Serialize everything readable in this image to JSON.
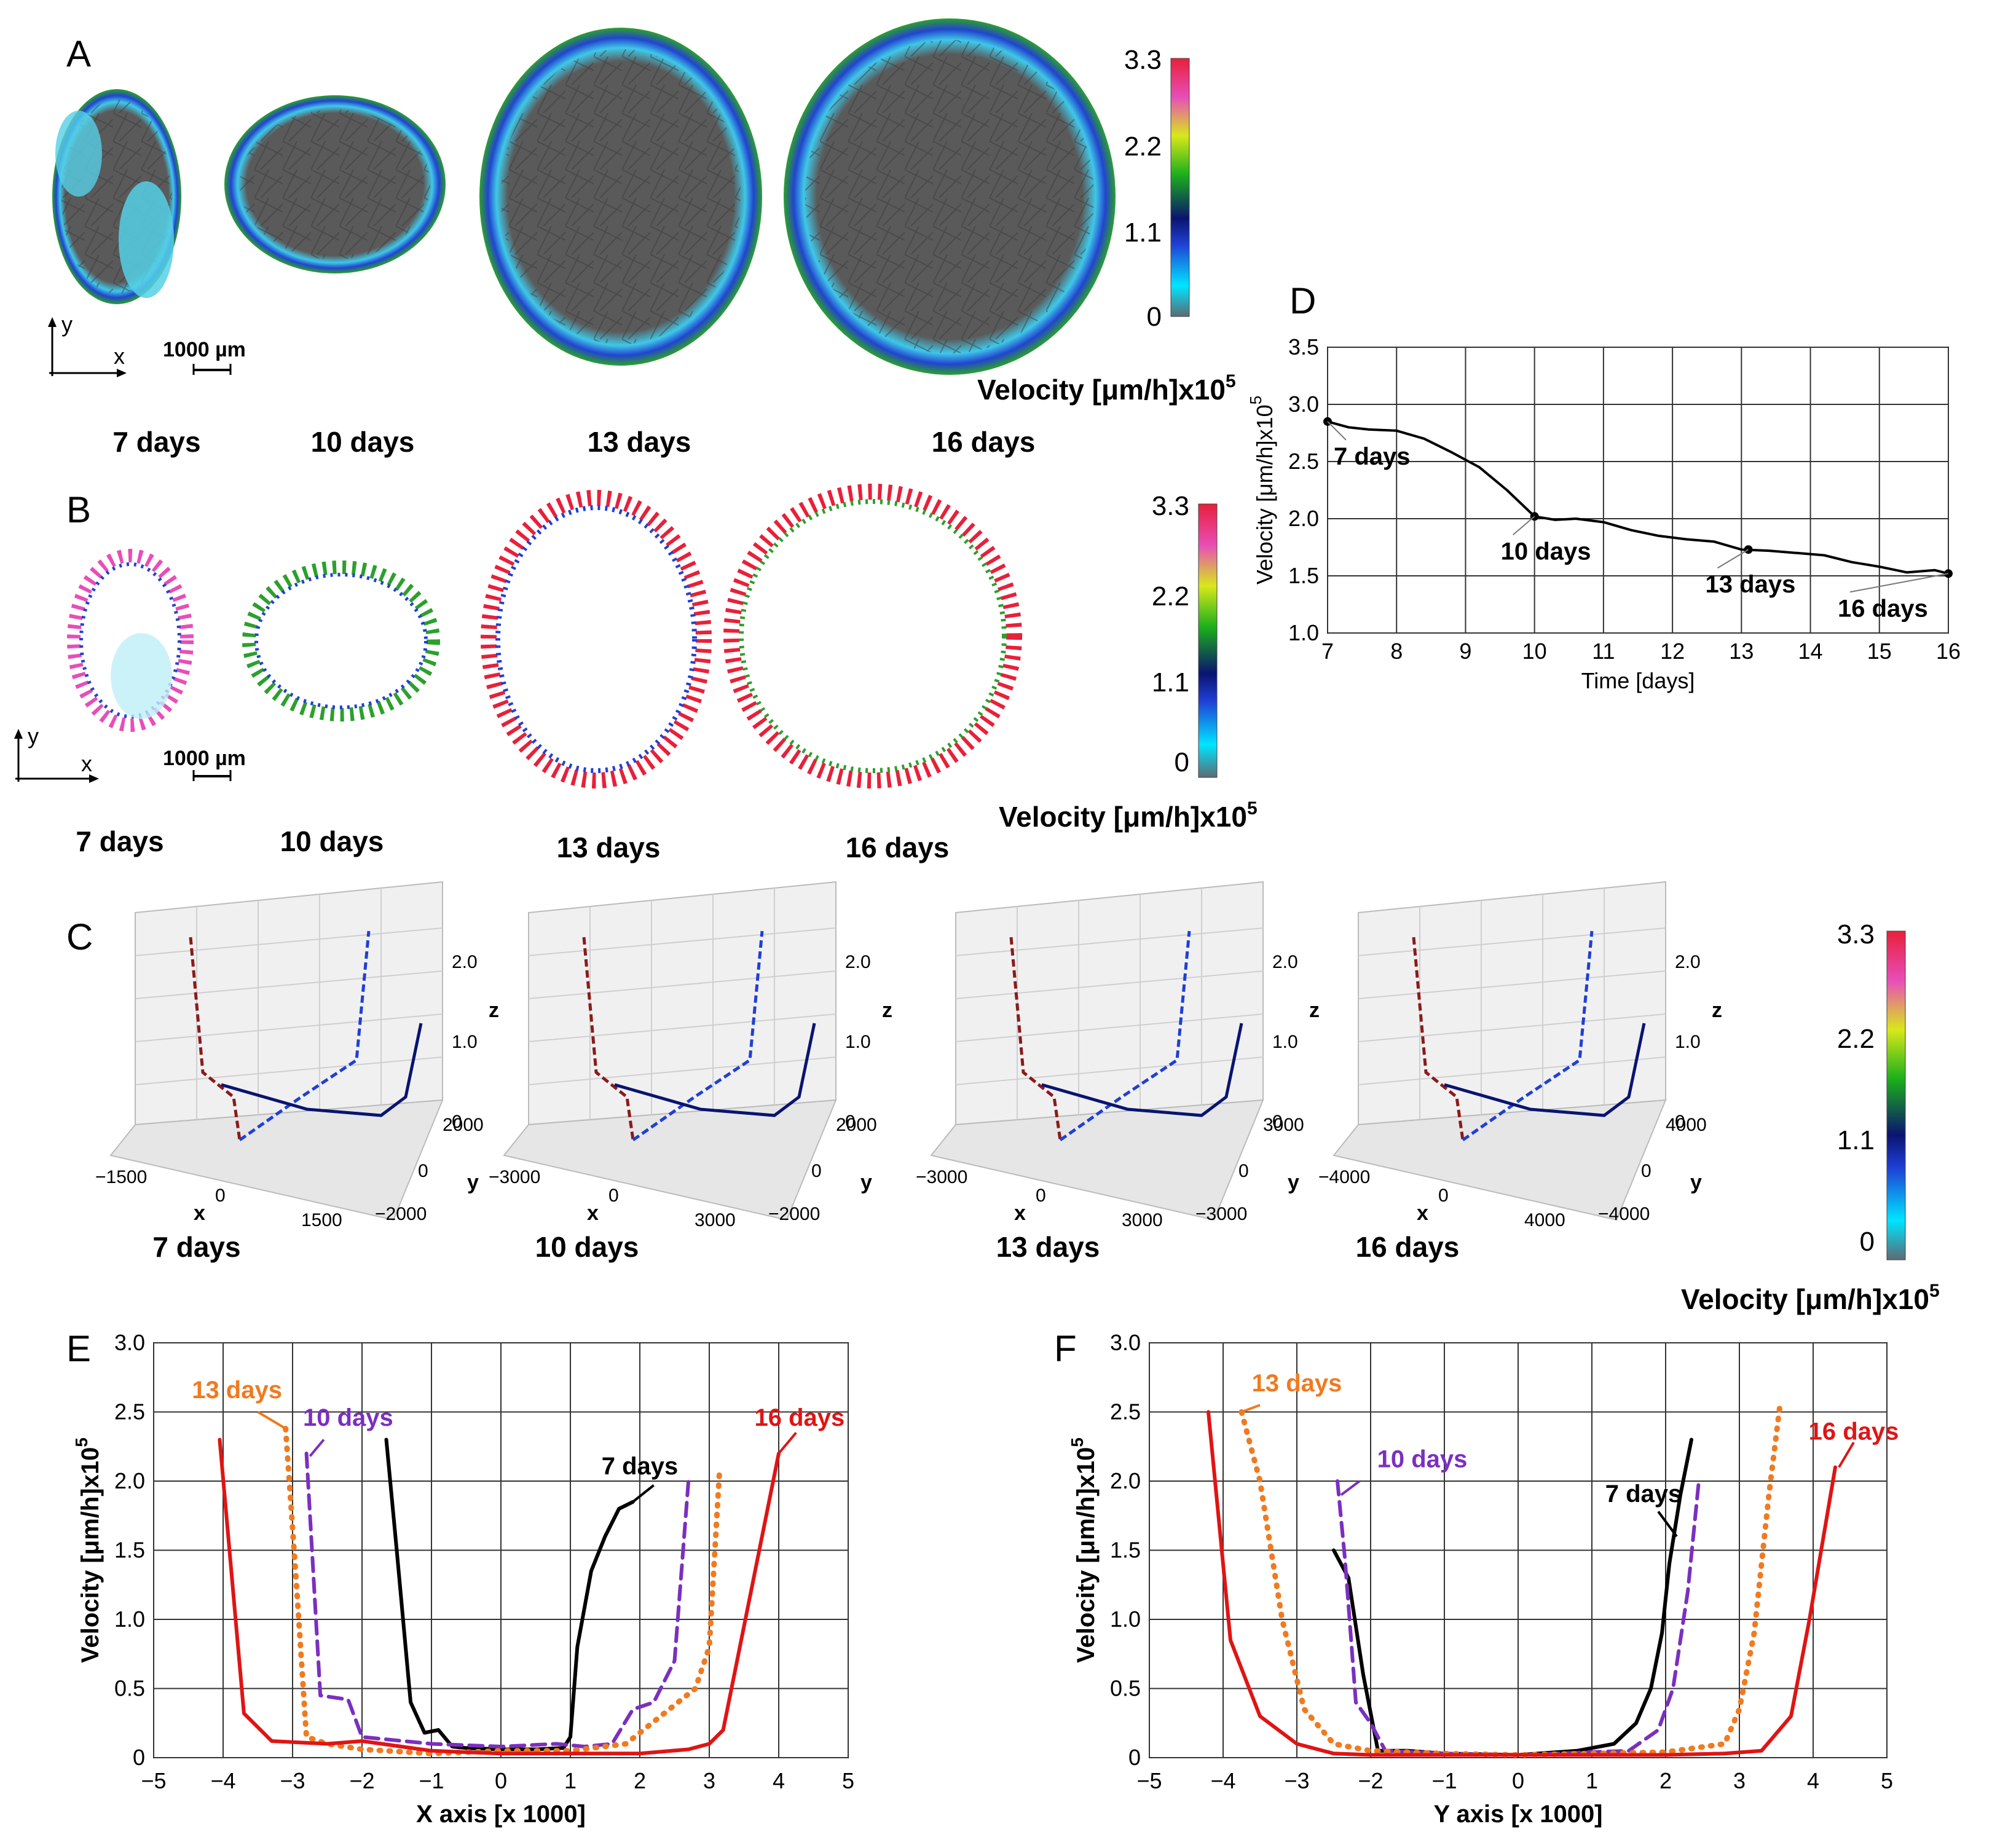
{
  "panels": {
    "A": {
      "letter": "A",
      "days": [
        "7 days",
        "10 days",
        "13 days",
        "16 days"
      ],
      "scale_bar": "1000 µm",
      "axis_x": "x",
      "axis_y": "y"
    },
    "B": {
      "letter": "B",
      "days": [
        "7 days",
        "10 days",
        "13 days",
        "16 days"
      ],
      "scale_bar": "1000 µm",
      "axis_x": "x",
      "axis_y": "y"
    },
    "C": {
      "letter": "C",
      "days": [
        "7 days",
        "10 days",
        "13 days",
        "16 days"
      ],
      "plots": [
        {
          "x_ticks": [
            "−1500",
            "0",
            "1500"
          ],
          "y_ticks": [
            "2000",
            "0",
            "−2000"
          ]
        },
        {
          "x_ticks": [
            "−3000",
            "0",
            "3000"
          ],
          "y_ticks": [
            "2000",
            "0",
            "−2000"
          ]
        },
        {
          "x_ticks": [
            "−3000",
            "0",
            "3000"
          ],
          "y_ticks": [
            "3000",
            "0",
            "−3000"
          ]
        },
        {
          "x_ticks": [
            "−4000",
            "0",
            "4000"
          ],
          "y_ticks": [
            "4000",
            "0",
            "−4000"
          ]
        }
      ],
      "z_ticks": [
        "2.0",
        "1.0",
        "0"
      ],
      "x_label": "x",
      "y_label": "y",
      "z_label": "z"
    },
    "D": {
      "letter": "D"
    },
    "E": {
      "letter": "E"
    },
    "F": {
      "letter": "F"
    }
  },
  "colorbar": {
    "ticks": [
      "3.3",
      "2.2",
      "1.1",
      "0"
    ],
    "label": "Velocity [μm/h]x10",
    "exponent": "5",
    "stops": [
      "#5c6b73",
      "#00e5ff",
      "#1f3fd6",
      "#0a1470",
      "#1bb01b",
      "#d8e81a",
      "#e84db8",
      "#e8203a"
    ]
  },
  "chart_data": [
    {
      "panel": "D",
      "type": "line",
      "title": "",
      "xlabel": "Time [days]",
      "ylabel": "Velocity [μm/h]x10",
      "ylabel_exp": "5",
      "xlim": [
        7,
        16
      ],
      "ylim": [
        1.0,
        3.5
      ],
      "x_ticks": [
        7,
        8,
        9,
        10,
        11,
        12,
        13,
        14,
        15,
        16
      ],
      "y_ticks": [
        1.0,
        1.5,
        2.0,
        2.5,
        3.0,
        3.5
      ],
      "y_tick_labels": [
        "1.0",
        "1.5",
        "2.0",
        "2.5",
        "3.0",
        "3.5"
      ],
      "grid": true,
      "series": [
        {
          "name": "velocity",
          "color": "#000000",
          "x": [
            7,
            7.3,
            7.6,
            8.0,
            8.4,
            8.8,
            9.2,
            9.6,
            10.0,
            10.3,
            10.6,
            11.0,
            11.4,
            11.8,
            12.2,
            12.6,
            13.0,
            13.4,
            13.8,
            14.2,
            14.6,
            15.0,
            15.4,
            15.8,
            16.0
          ],
          "values": [
            2.85,
            2.8,
            2.78,
            2.77,
            2.7,
            2.58,
            2.45,
            2.25,
            2.02,
            1.99,
            2.0,
            1.97,
            1.9,
            1.85,
            1.82,
            1.8,
            1.73,
            1.72,
            1.7,
            1.68,
            1.62,
            1.58,
            1.53,
            1.55,
            1.52
          ]
        }
      ],
      "annotations": [
        {
          "text": "7 days",
          "x": 7.0,
          "y": 2.85
        },
        {
          "text": "10 days",
          "x": 10.0,
          "y": 2.02
        },
        {
          "text": "13 days",
          "x": 13.1,
          "y": 1.73
        },
        {
          "text": "16 days",
          "x": 16.0,
          "y": 1.52
        }
      ]
    },
    {
      "panel": "E",
      "type": "line",
      "title": "",
      "xlabel": "X axis [x 1000]",
      "ylabel": "Velocity [μm/h]x10",
      "ylabel_exp": "5",
      "xlim": [
        -5,
        5
      ],
      "ylim": [
        0,
        3.0
      ],
      "x_ticks": [
        -5,
        -4,
        -3,
        -2,
        -1,
        0,
        1,
        2,
        3,
        4,
        5
      ],
      "x_tick_labels": [
        "−5",
        "−4",
        "−3",
        "−2",
        "−1",
        "0",
        "1",
        "2",
        "3",
        "4",
        "5"
      ],
      "y_ticks": [
        0,
        0.5,
        1.0,
        1.5,
        2.0,
        2.5,
        3.0
      ],
      "y_tick_labels": [
        "0",
        "0.5",
        "1.0",
        "1.5",
        "2.0",
        "2.5",
        "3.0"
      ],
      "grid": true,
      "series": [
        {
          "name": "7 days",
          "color": "#000000",
          "style": "solid",
          "x": [
            -1.65,
            -1.5,
            -1.3,
            -1.1,
            -0.9,
            -0.7,
            -0.5,
            0,
            0.5,
            0.9,
            1.0,
            1.1,
            1.3,
            1.5,
            1.7,
            1.9
          ],
          "values": [
            2.3,
            1.5,
            0.4,
            0.18,
            0.2,
            0.08,
            0.07,
            0.06,
            0.06,
            0.07,
            0.15,
            0.8,
            1.35,
            1.6,
            1.8,
            1.85
          ]
        },
        {
          "name": "10 days",
          "color": "#7b2fbf",
          "style": "dashed",
          "x": [
            -2.8,
            -2.6,
            -2.2,
            -2.0,
            -1.0,
            0,
            0.8,
            1.2,
            1.6,
            1.9,
            2.2,
            2.5,
            2.7
          ],
          "values": [
            2.2,
            0.45,
            0.42,
            0.15,
            0.1,
            0.08,
            0.1,
            0.08,
            0.1,
            0.35,
            0.4,
            0.7,
            2.0
          ]
        },
        {
          "name": "13 days",
          "color": "#f07a20",
          "style": "dotted",
          "x": [
            -3.1,
            -2.95,
            -2.8,
            -2.5,
            -2.0,
            -1.0,
            0,
            1.0,
            1.8,
            2.3,
            2.8,
            3.0,
            3.15
          ],
          "values": [
            2.38,
            1.3,
            0.15,
            0.1,
            0.06,
            0.03,
            0.05,
            0.05,
            0.1,
            0.3,
            0.5,
            0.8,
            2.1
          ]
        },
        {
          "name": "16 days",
          "color": "#e01414",
          "style": "solid",
          "x": [
            -4.05,
            -3.7,
            -3.3,
            -2.5,
            -2.0,
            -1.0,
            0,
            1.0,
            2.0,
            2.7,
            3.0,
            3.2,
            3.6,
            4.0
          ],
          "values": [
            2.3,
            0.32,
            0.12,
            0.1,
            0.12,
            0.05,
            0.03,
            0.03,
            0.03,
            0.06,
            0.1,
            0.2,
            1.2,
            2.2
          ]
        }
      ],
      "annotations": [
        {
          "text": "13 days",
          "color": "#f07a20"
        },
        {
          "text": "10 days",
          "color": "#7b2fbf"
        },
        {
          "text": "7 days",
          "color": "#000000"
        },
        {
          "text": "16 days",
          "color": "#e01414"
        }
      ]
    },
    {
      "panel": "F",
      "type": "line",
      "title": "",
      "xlabel": "Y axis [x 1000]",
      "ylabel": "Velocity [μm/h]x10",
      "ylabel_exp": "5",
      "xlim": [
        -5,
        5
      ],
      "ylim": [
        0,
        3.0
      ],
      "x_ticks": [
        -5,
        -4,
        -3,
        -2,
        -1,
        0,
        1,
        2,
        3,
        4,
        5
      ],
      "x_tick_labels": [
        "−5",
        "−4",
        "−3",
        "−2",
        "−1",
        "0",
        "1",
        "2",
        "3",
        "4",
        "5"
      ],
      "y_ticks": [
        0,
        0.5,
        1.0,
        1.5,
        2.0,
        2.5,
        3.0
      ],
      "y_tick_labels": [
        "0",
        "0.5",
        "1.0",
        "1.5",
        "2.0",
        "2.5",
        "3.0"
      ],
      "grid": true,
      "series": [
        {
          "name": "7 days",
          "color": "#000000",
          "style": "solid",
          "x": [
            -2.5,
            -2.3,
            -2.1,
            -1.9,
            -1.5,
            -1.0,
            0,
            0.8,
            1.3,
            1.6,
            1.8,
            1.95,
            2.05,
            2.2,
            2.35
          ],
          "values": [
            1.5,
            1.3,
            0.6,
            0.05,
            0.05,
            0.03,
            0.02,
            0.05,
            0.1,
            0.25,
            0.5,
            0.9,
            1.4,
            1.9,
            2.3
          ]
        },
        {
          "name": "10 days",
          "color": "#7b2fbf",
          "style": "dashed",
          "x": [
            -2.45,
            -2.35,
            -2.2,
            -2.0,
            -1.8,
            -1.0,
            0,
            1.0,
            1.5,
            1.9,
            2.1,
            2.3,
            2.45
          ],
          "values": [
            2.0,
            1.45,
            0.4,
            0.25,
            0.05,
            0.03,
            0.02,
            0.04,
            0.05,
            0.2,
            0.5,
            1.2,
            2.0
          ]
        },
        {
          "name": "13 days",
          "color": "#f07a20",
          "style": "dotted",
          "x": [
            -3.75,
            -3.5,
            -3.2,
            -2.9,
            -2.5,
            -2.0,
            -1.0,
            0,
            1.0,
            2.0,
            2.8,
            3.0,
            3.2,
            3.4,
            3.55
          ],
          "values": [
            2.5,
            2.0,
            1.0,
            0.35,
            0.1,
            0.05,
            0.03,
            0.02,
            0.03,
            0.04,
            0.1,
            0.35,
            0.9,
            1.9,
            2.55
          ]
        },
        {
          "name": "16 days",
          "color": "#e01414",
          "style": "solid",
          "x": [
            -4.2,
            -3.9,
            -3.5,
            -3.0,
            -2.5,
            -2.0,
            -1.0,
            0,
            1.0,
            2.0,
            2.8,
            3.3,
            3.7,
            3.95,
            4.3
          ],
          "values": [
            2.5,
            0.85,
            0.3,
            0.1,
            0.03,
            0.02,
            0.02,
            0.02,
            0.02,
            0.02,
            0.03,
            0.05,
            0.3,
            1.0,
            2.1
          ]
        }
      ],
      "annotations": [
        {
          "text": "13 days",
          "color": "#f07a20"
        },
        {
          "text": "10 days",
          "color": "#7b2fbf"
        },
        {
          "text": "7 days",
          "color": "#000000"
        },
        {
          "text": "16 days",
          "color": "#e01414"
        }
      ]
    }
  ]
}
